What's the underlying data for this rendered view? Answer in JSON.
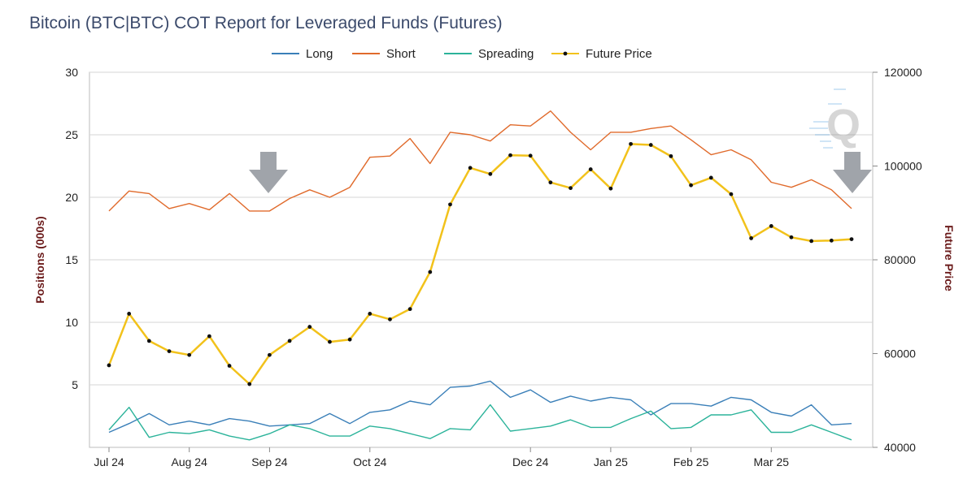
{
  "chart_data": {
    "type": "line",
    "title": "Bitcoin (BTC|BTC) COT Report for Leveraged Funds (Futures)",
    "ylabel": "Positions (000s)",
    "y2label": "Future Price",
    "ylim": [
      0,
      30
    ],
    "y2lim": [
      40000,
      120000
    ],
    "yticks": [
      "5",
      "10",
      "15",
      "20",
      "25",
      "30"
    ],
    "y2ticks": [
      "40000",
      "60000",
      "80000",
      "100000",
      "120000"
    ],
    "xticks": [
      {
        "label": "Jul 24",
        "index": 0
      },
      {
        "label": "Aug 24",
        "index": 4
      },
      {
        "label": "Sep 24",
        "index": 8
      },
      {
        "label": "Oct 24",
        "index": 13
      },
      {
        "label": "Dec 24",
        "index": 21
      },
      {
        "label": "Jan 25",
        "index": 25
      },
      {
        "label": "Feb 25",
        "index": 29
      },
      {
        "label": "Mar 25",
        "index": 33
      }
    ],
    "legend_position": "top",
    "grid": true,
    "series": [
      {
        "name": "Long",
        "color": "#3a7fb8",
        "axis": "left",
        "markers": false,
        "values": [
          1.2,
          1.9,
          2.7,
          1.8,
          2.1,
          1.8,
          2.3,
          2.1,
          1.7,
          1.8,
          1.9,
          2.7,
          1.9,
          2.8,
          3.0,
          3.7,
          3.4,
          4.8,
          4.9,
          5.3,
          4.0,
          4.6,
          3.6,
          4.1,
          3.7,
          4.0,
          3.8,
          2.6,
          3.5,
          3.5,
          3.3,
          4.0,
          3.8,
          2.8,
          2.5,
          3.4,
          1.8,
          1.9
        ]
      },
      {
        "name": "Short",
        "color": "#e06a2b",
        "axis": "left",
        "markers": false,
        "values": [
          18.9,
          20.5,
          20.3,
          19.1,
          19.5,
          19.0,
          20.3,
          18.9,
          18.9,
          19.9,
          20.6,
          20.0,
          20.8,
          23.2,
          23.3,
          24.7,
          22.7,
          25.2,
          25.0,
          24.5,
          25.8,
          25.7,
          26.9,
          25.2,
          23.8,
          25.2,
          25.2,
          25.5,
          25.7,
          24.6,
          23.4,
          23.8,
          23.0,
          21.2,
          20.8,
          21.4,
          20.6,
          19.1
        ]
      },
      {
        "name": "Spreading",
        "color": "#2bb39a",
        "axis": "left",
        "markers": false,
        "values": [
          1.4,
          3.2,
          0.8,
          1.2,
          1.1,
          1.4,
          0.9,
          0.6,
          1.1,
          1.8,
          1.5,
          0.9,
          0.9,
          1.7,
          1.5,
          1.1,
          0.7,
          1.5,
          1.4,
          3.4,
          1.3,
          1.5,
          1.7,
          2.2,
          1.6,
          1.6,
          2.3,
          2.9,
          1.5,
          1.6,
          2.6,
          2.6,
          3.0,
          1.2,
          1.2,
          1.8,
          1.2,
          0.6
        ]
      },
      {
        "name": "Future Price",
        "color": "#f2c21b",
        "axis": "right",
        "markers": true,
        "values": [
          57500,
          68500,
          62700,
          60500,
          59700,
          63700,
          57400,
          53500,
          59700,
          62700,
          65700,
          62500,
          63000,
          68500,
          67300,
          69500,
          77400,
          91800,
          99600,
          98300,
          102300,
          102200,
          96500,
          95300,
          99300,
          95200,
          104700,
          104500,
          102100,
          95900,
          97500,
          94000,
          84600,
          87200,
          84800,
          84000,
          84100,
          84400
        ]
      }
    ]
  }
}
